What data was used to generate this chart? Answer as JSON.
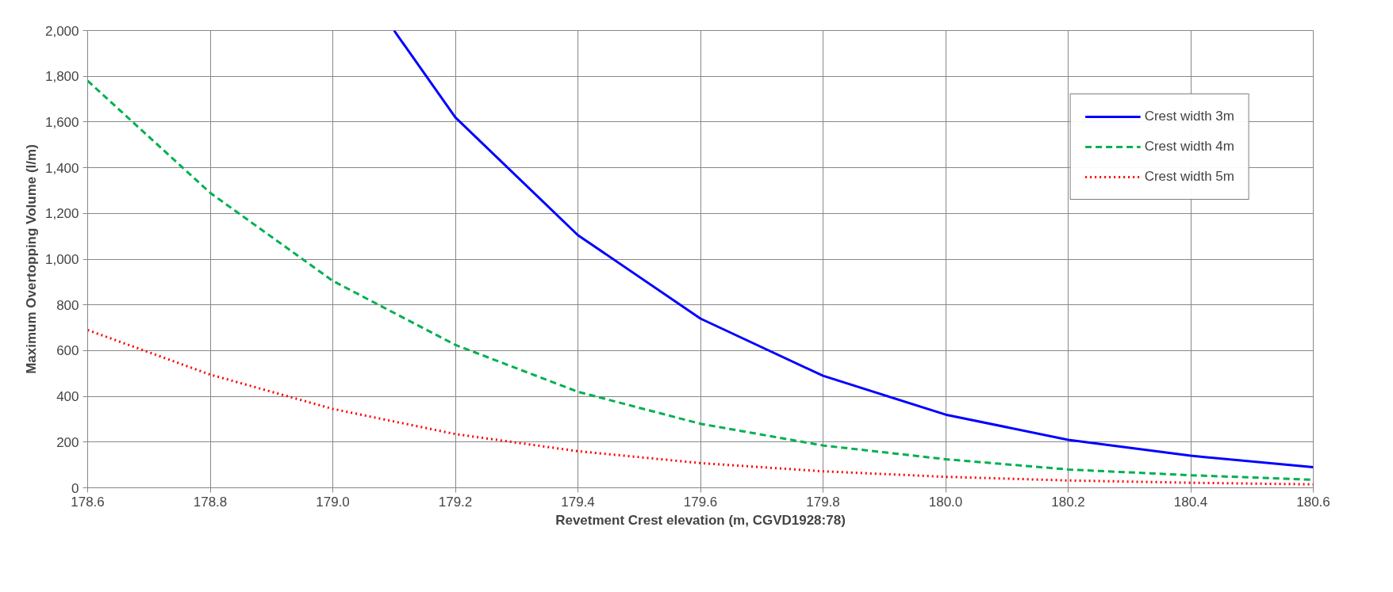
{
  "chart_data": {
    "type": "line",
    "xlabel": "Revetment Crest elevation (m, CGVD1928:78)",
    "ylabel": "Maximum Overtopping Volume (l/m)",
    "xlim": [
      178.6,
      180.6
    ],
    "ylim": [
      0,
      2000
    ],
    "xticks": [
      {
        "value": 178.6,
        "label": "178.6"
      },
      {
        "value": 178.8,
        "label": "178.8"
      },
      {
        "value": 179.0,
        "label": "179.0"
      },
      {
        "value": 179.2,
        "label": "179.2"
      },
      {
        "value": 179.4,
        "label": "179.4"
      },
      {
        "value": 179.6,
        "label": "179.6"
      },
      {
        "value": 179.8,
        "label": "179.8"
      },
      {
        "value": 180.0,
        "label": "180.0"
      },
      {
        "value": 180.2,
        "label": "180.2"
      },
      {
        "value": 180.4,
        "label": "180.4"
      },
      {
        "value": 180.6,
        "label": "180.6"
      }
    ],
    "yticks": [
      0,
      200,
      400,
      600,
      800,
      {
        "value": 1000,
        "label": "1,000"
      },
      {
        "value": 1200,
        "label": "1,200"
      },
      {
        "value": 1400,
        "label": "1,400"
      },
      {
        "value": 1600,
        "label": "1,600"
      },
      {
        "value": 1800,
        "label": "1,800"
      },
      {
        "value": 2000,
        "label": "2,000"
      }
    ],
    "grid": true,
    "legend": "top right",
    "series": [
      {
        "name": "Crest width 3m",
        "color": "#0000ff",
        "line_style": "solid",
        "x": [
          179.1,
          179.2,
          179.4,
          179.6,
          179.8,
          180.0,
          180.2,
          180.4,
          180.6
        ],
        "values": [
          2000,
          1620,
          1105,
          740,
          490,
          320,
          210,
          140,
          90
        ]
      },
      {
        "name": "Crest width 4m",
        "color": "#00b050",
        "line_style": "dashed",
        "x": [
          178.6,
          178.8,
          179.0,
          179.2,
          179.4,
          179.6,
          179.8,
          180.0,
          180.2,
          180.4,
          180.6
        ],
        "values": [
          1780,
          1290,
          905,
          625,
          420,
          280,
          185,
          125,
          80,
          55,
          35
        ]
      },
      {
        "name": "Crest width 5m",
        "color": "#ff0000",
        "line_style": "dotted",
        "x": [
          178.6,
          178.8,
          179.0,
          179.2,
          179.4,
          179.6,
          179.8,
          180.0,
          180.2,
          180.4,
          180.6
        ],
        "values": [
          690,
          495,
          345,
          235,
          160,
          108,
          72,
          48,
          32,
          22,
          15
        ]
      }
    ]
  }
}
